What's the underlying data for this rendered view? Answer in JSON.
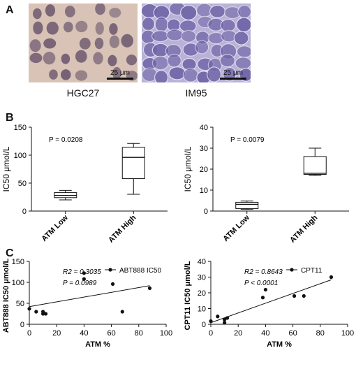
{
  "panel_letters": {
    "a": "A",
    "b": "B",
    "c": "C"
  },
  "micrographs": [
    {
      "cell_line": "HGC27",
      "scale_bar": "25 μm",
      "colors": {
        "background": "#d8c3b6",
        "cell": "#6f5a70"
      }
    },
    {
      "cell_line": "IM95",
      "scale_bar": "25 μm",
      "colors": {
        "background": "#b9b2d6",
        "cell": "#6f65a8"
      }
    }
  ],
  "chart_data": [
    {
      "type": "box",
      "ylabel": "IC50 μmol/L",
      "ylim": [
        0,
        150
      ],
      "yticks": [
        0,
        50,
        100,
        150
      ],
      "annotation": "P = 0.0208",
      "categories": [
        "ATM Low",
        "ATM High"
      ],
      "boxes": [
        {
          "min": 20,
          "q1": 24,
          "median": 28,
          "q3": 33,
          "max": 37
        },
        {
          "min": 30,
          "q1": 58,
          "median": 96,
          "q3": 114,
          "max": 121
        }
      ]
    },
    {
      "type": "box",
      "ylabel": "IC50 μmol/L",
      "ylim": [
        0,
        40
      ],
      "yticks": [
        0,
        10,
        20,
        30,
        40
      ],
      "annotation": "P = 0.0079",
      "categories": [
        "ATM Low",
        "ATM High"
      ],
      "boxes": [
        {
          "min": 0.8,
          "q1": 1.2,
          "median": 3.2,
          "q3": 4.2,
          "max": 4.8
        },
        {
          "min": 17,
          "q1": 17.5,
          "median": 18,
          "q3": 26,
          "max": 30
        }
      ]
    },
    {
      "type": "scatter",
      "xlabel": "ATM %",
      "ylabel": "ABT888 IC50 μmol/L",
      "xlim": [
        0,
        100
      ],
      "ylim": [
        0,
        150
      ],
      "xticks": [
        0,
        20,
        40,
        60,
        80,
        100
      ],
      "yticks": [
        0,
        50,
        100,
        150
      ],
      "stats": [
        "R2 = 0.3035",
        "P = 0.0989"
      ],
      "series": [
        {
          "name": "ABT888 IC50",
          "x": [
            0,
            5,
            10,
            10,
            12,
            40,
            40,
            61,
            68,
            88
          ],
          "y": [
            37,
            30,
            30,
            25,
            25,
            122,
            108,
            96,
            30,
            86
          ]
        }
      ],
      "fit": {
        "slope": 0.57,
        "intercept": 42
      }
    },
    {
      "type": "scatter",
      "xlabel": "ATM %",
      "ylabel": "CPT11 IC50 μmol/L",
      "xlim": [
        0,
        100
      ],
      "ylim": [
        0,
        40
      ],
      "xticks": [
        0,
        20,
        40,
        60,
        80,
        100
      ],
      "yticks": [
        0,
        10,
        20,
        30,
        40
      ],
      "stats": [
        "R2 = 0.8643",
        "P < 0.0001"
      ],
      "series": [
        {
          "name": "CPT11",
          "x": [
            0,
            5,
            10,
            10,
            12,
            38,
            40,
            61,
            68,
            88
          ],
          "y": [
            2,
            5,
            3,
            1,
            4,
            17,
            22,
            18,
            18,
            30
          ]
        }
      ],
      "fit": {
        "slope": 0.31,
        "intercept": 1
      }
    }
  ]
}
